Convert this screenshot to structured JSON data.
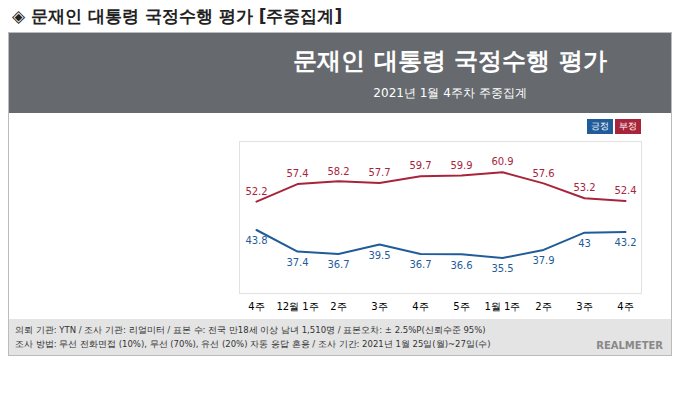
{
  "page_title": "◈ 문재인 대통령 국정수행 평가 [주중집계]",
  "chart_data": {
    "type": "line",
    "title": "문재인 대통령 국정수행 평가",
    "subtitle": "2021년 1월 4주차 주중집계",
    "categories": [
      "4주",
      "12월 1주",
      "2주",
      "3주",
      "4주",
      "5주",
      "1월 1주",
      "2주",
      "3주",
      "4주"
    ],
    "series": [
      {
        "name": "긍정",
        "color": "#1f5c99",
        "values": [
          43.8,
          37.4,
          36.7,
          39.5,
          36.7,
          36.6,
          35.5,
          37.9,
          43.0,
          43.2
        ]
      },
      {
        "name": "부정",
        "color": "#a8243a",
        "values": [
          52.2,
          57.4,
          58.2,
          57.7,
          59.7,
          59.9,
          60.9,
          57.6,
          53.2,
          52.4
        ]
      }
    ],
    "ylim": [
      25,
      70
    ],
    "data_labels": true,
    "tick_labels": "x",
    "legend": "top-right",
    "notes": [
      "의뢰 기관: YTN / 조사 기관: 리얼미터 / 표본 수: 전국 만18세 이상 남녀 1,510명 / 표본오차: ± 2.5%P(신뢰수준 95%)",
      "조사 방법: 무선 전화면접 (10%), 무선 (70%), 유선 (20%) 자동 응답 혼용 / 조사 기간: 2021년 1월 25일(월)~27일(수)"
    ],
    "source": "REALMETER"
  }
}
